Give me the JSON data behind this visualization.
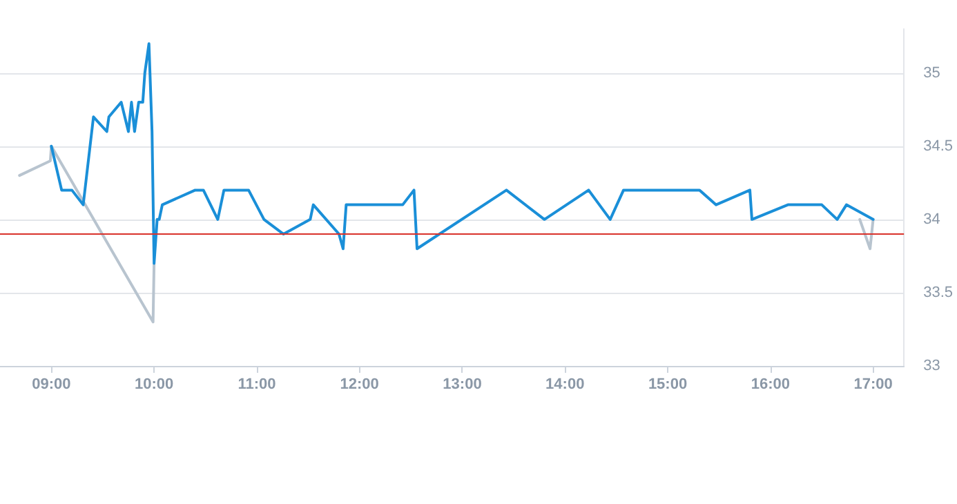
{
  "chart_data": {
    "type": "line",
    "xlim": [
      8.5,
      17.3
    ],
    "xticks": [
      {
        "value": 9,
        "label": "09:00"
      },
      {
        "value": 10,
        "label": "10:00"
      },
      {
        "value": 11,
        "label": "11:00"
      },
      {
        "value": 12,
        "label": "12:00"
      },
      {
        "value": 13,
        "label": "13:00"
      },
      {
        "value": 14,
        "label": "14:00"
      },
      {
        "value": 15,
        "label": "15:00"
      },
      {
        "value": 16,
        "label": "16:00"
      },
      {
        "value": 17,
        "label": "17:00"
      }
    ],
    "ylim": [
      33,
      35.3
    ],
    "yticks": [
      33,
      33.5,
      34,
      34.5,
      35
    ],
    "grid": "y",
    "marker": "none",
    "line_style": "solid",
    "series": [
      {
        "color": "#b8c4cf",
        "x": [
          8.69,
          8.99,
          9.0,
          9.99,
          10.0,
          13.0,
          16.87,
          16.97,
          17.0
        ],
        "values": [
          34.3,
          34.4,
          34.5,
          33.3,
          33.7,
          null,
          34.0,
          33.8,
          34.0
        ]
      },
      {
        "color": "#1a8fd8",
        "x": [
          9.0,
          9.1,
          9.2,
          9.31,
          9.41,
          9.54,
          9.56,
          9.68,
          9.75,
          9.78,
          9.81,
          9.85,
          9.89,
          9.91,
          9.95,
          9.98,
          10.0,
          10.03,
          10.05,
          10.08,
          10.4,
          10.48,
          10.62,
          10.68,
          10.92,
          11.07,
          11.26,
          11.52,
          11.55,
          11.8,
          11.84,
          11.87,
          12.42,
          12.53,
          12.56,
          13.43,
          13.8,
          14.23,
          14.44,
          14.57,
          15.31,
          15.47,
          15.8,
          15.82,
          16.17,
          16.5,
          16.65,
          16.74,
          17.0
        ],
        "values": [
          34.5,
          34.2,
          34.2,
          34.1,
          34.7,
          34.6,
          34.7,
          34.8,
          34.6,
          34.8,
          34.6,
          34.8,
          34.8,
          35.0,
          35.2,
          34.6,
          33.7,
          34.0,
          34.0,
          34.1,
          34.2,
          34.2,
          34.0,
          34.2,
          34.2,
          34.0,
          33.9,
          34.0,
          34.1,
          33.9,
          33.8,
          34.1,
          34.1,
          34.2,
          33.8,
          34.2,
          34.0,
          34.2,
          34.0,
          34.2,
          34.2,
          34.1,
          34.2,
          34.0,
          34.1,
          34.1,
          34.0,
          34.1,
          34.0
        ]
      }
    ],
    "ref_lines": [
      {
        "axis": "y",
        "value": 33.9,
        "color": "#d9322b"
      }
    ]
  }
}
